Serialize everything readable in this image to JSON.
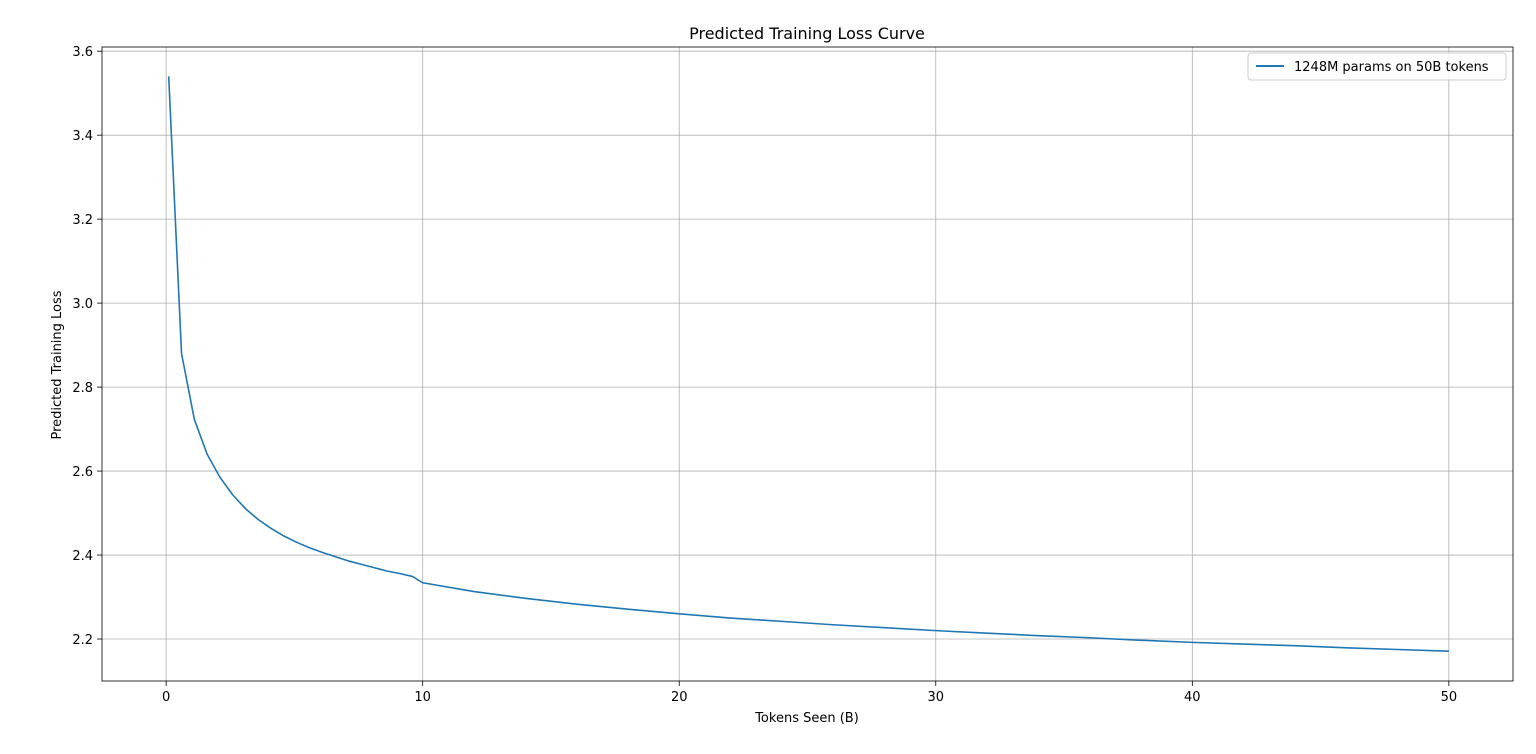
{
  "chart_data": {
    "type": "line",
    "title": "Predicted Training Loss Curve",
    "xlabel": "Tokens Seen (B)",
    "ylabel": "Predicted Training Loss",
    "xlim": [
      -2.5,
      52.5
    ],
    "ylim": [
      2.1,
      3.61
    ],
    "xticks": [
      0,
      10,
      20,
      30,
      40,
      50
    ],
    "xtick_labels": [
      "0",
      "10",
      "20",
      "30",
      "40",
      "50"
    ],
    "yticks": [
      2.2,
      2.4,
      2.6,
      2.8,
      3.0,
      3.2,
      3.4,
      3.6
    ],
    "ytick_labels": [
      "2.2",
      "2.4",
      "2.6",
      "2.8",
      "3.0",
      "3.2",
      "3.4",
      "3.6"
    ],
    "grid": true,
    "legend_position": "top-right",
    "series": [
      {
        "name": "1248M params on 50B tokens",
        "color": "#1f77b4",
        "x": [
          0.1,
          0.6,
          1.1,
          1.6,
          2.1,
          2.6,
          3.1,
          3.6,
          4.1,
          4.6,
          5.1,
          5.6,
          6.1,
          6.6,
          7.1,
          7.6,
          8.1,
          8.6,
          9.1,
          9.6,
          10,
          12,
          14,
          16,
          18,
          20,
          22,
          24,
          26,
          28,
          30,
          32,
          34,
          36,
          38,
          40,
          42,
          44,
          46,
          48,
          50
        ],
        "y": [
          3.54,
          2.88,
          2.723,
          2.64,
          2.585,
          2.543,
          2.51,
          2.484,
          2.463,
          2.445,
          2.43,
          2.417,
          2.406,
          2.396,
          2.386,
          2.378,
          2.37,
          2.362,
          2.356,
          2.349,
          2.334,
          2.313,
          2.297,
          2.283,
          2.271,
          2.26,
          2.25,
          2.242,
          2.234,
          2.227,
          2.22,
          2.214,
          2.208,
          2.203,
          2.197,
          2.192,
          2.188,
          2.184,
          2.179,
          2.175,
          2.171
        ]
      }
    ]
  }
}
